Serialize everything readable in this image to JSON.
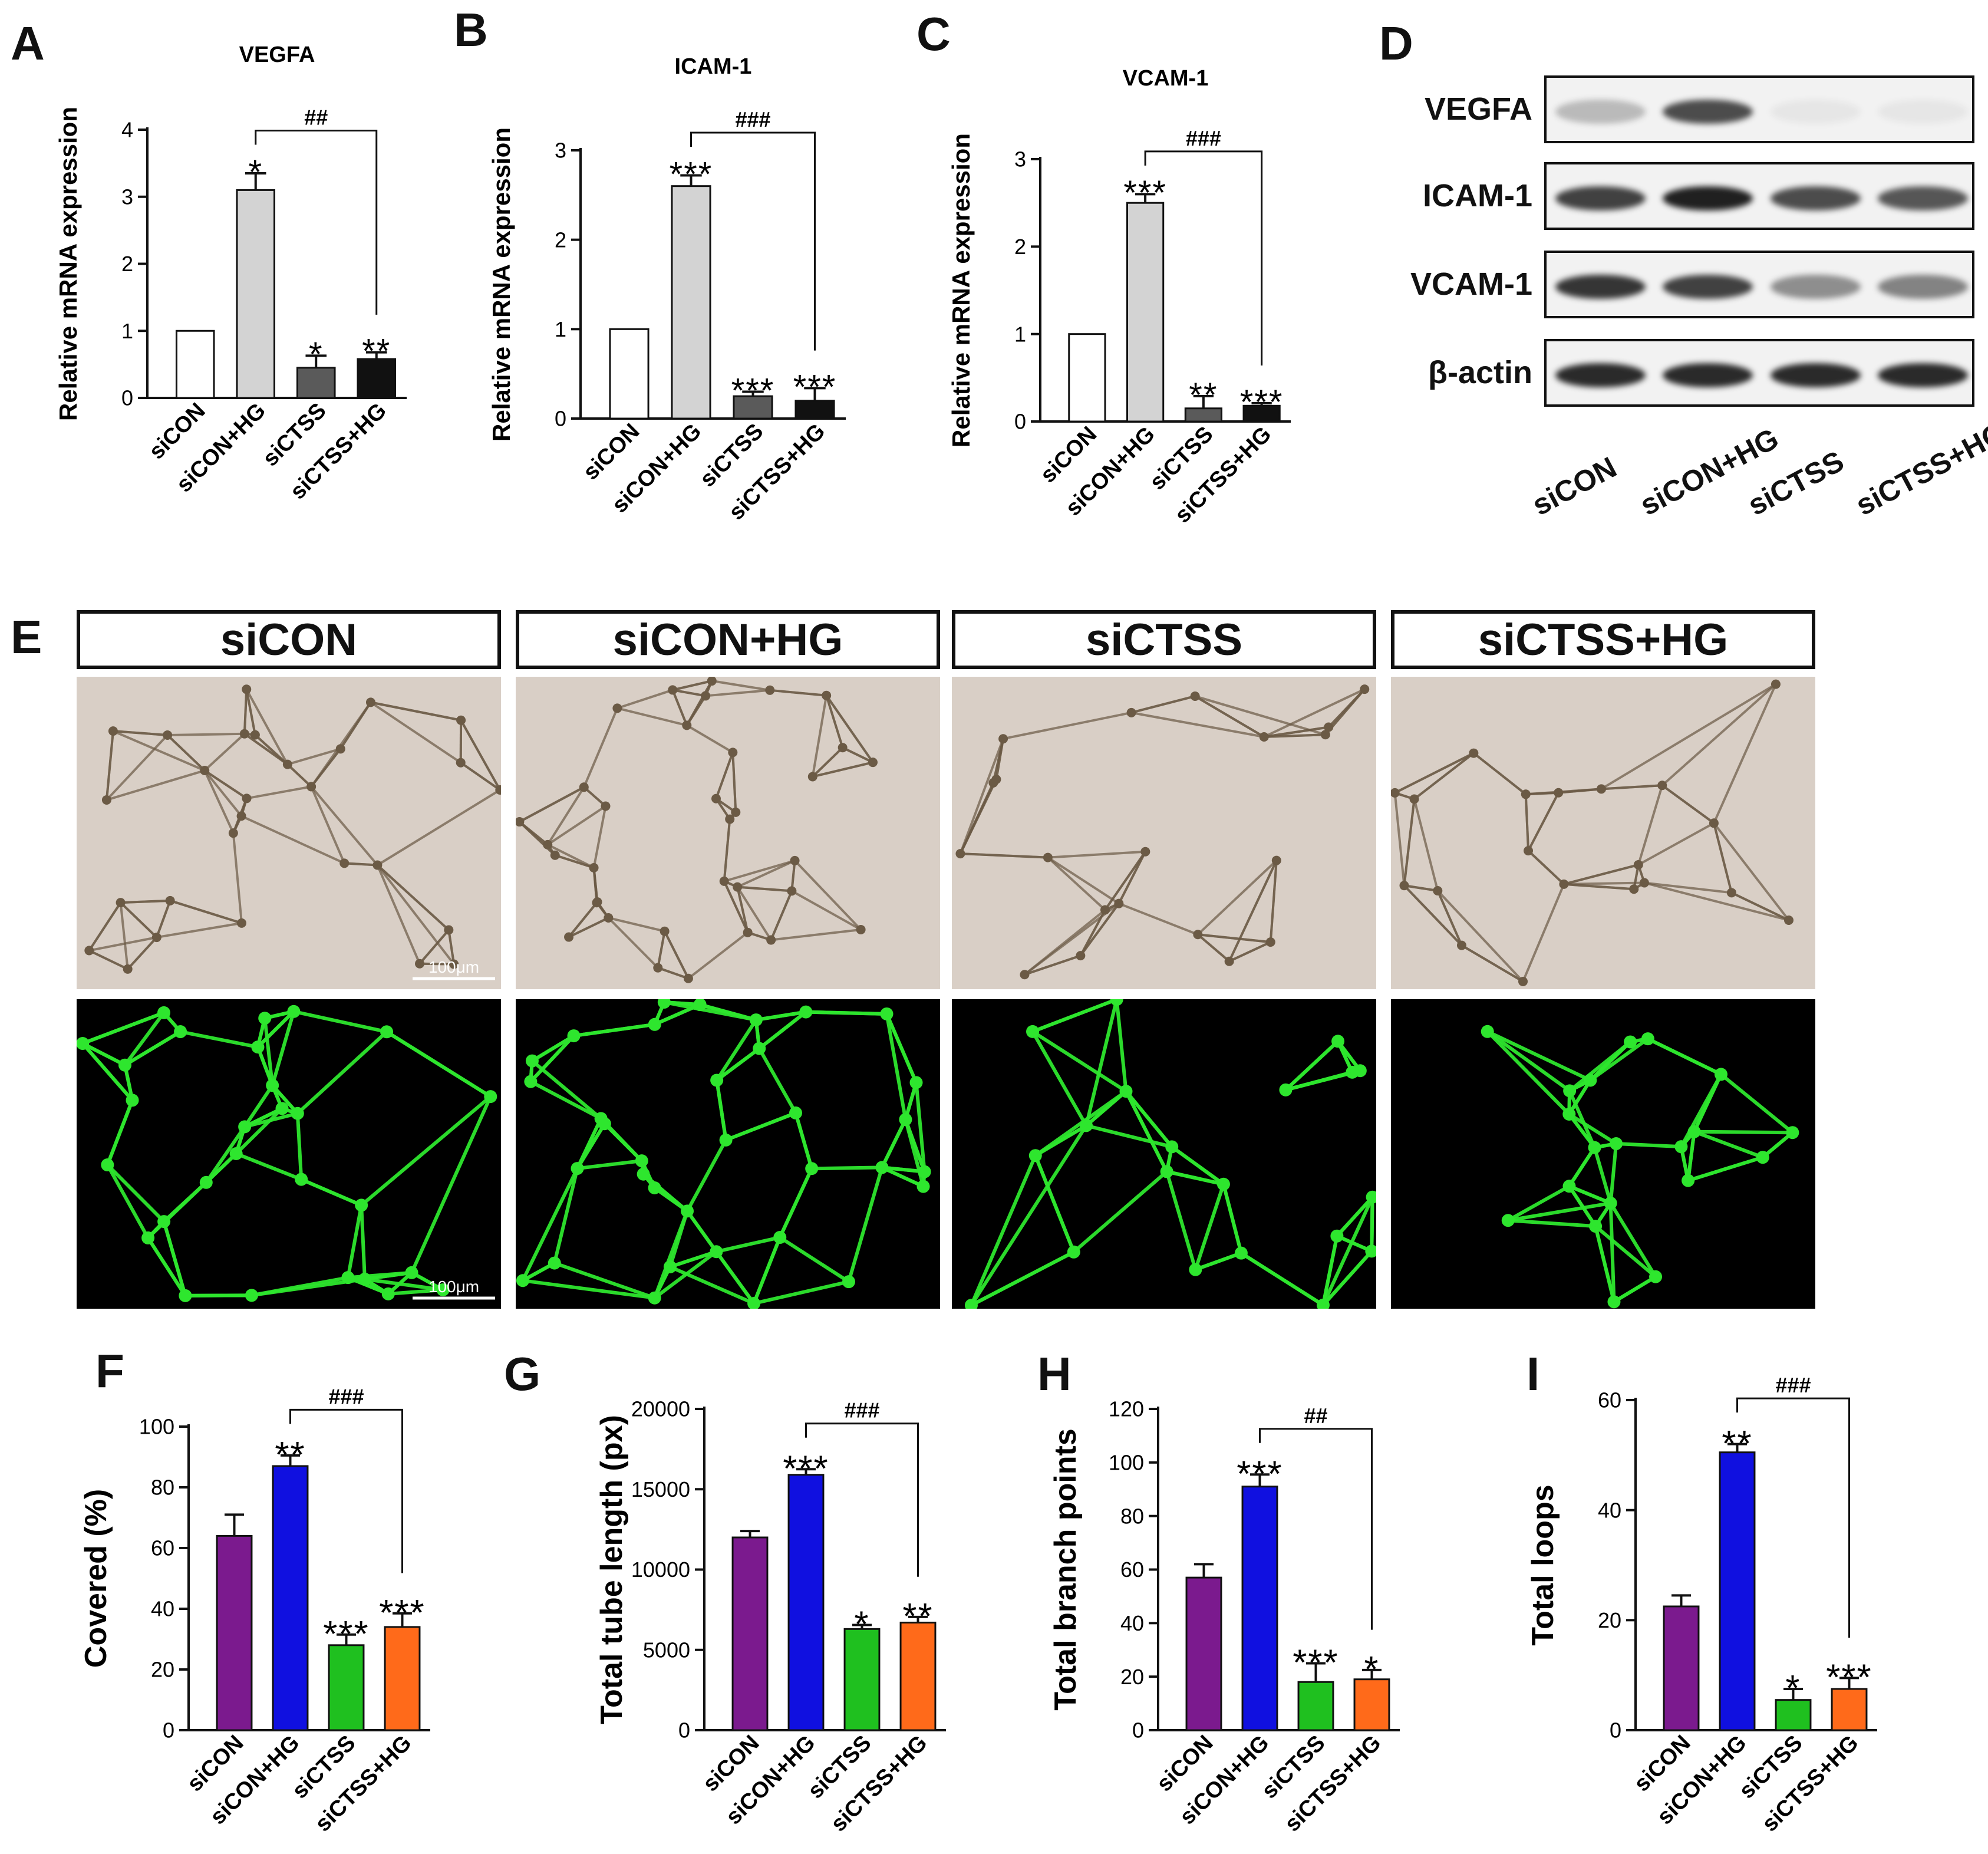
{
  "panels": {
    "A": "A",
    "B": "B",
    "C": "C",
    "D": "D",
    "E": "E",
    "F": "F",
    "G": "G",
    "H": "H",
    "I": "I"
  },
  "groups": [
    "siCON",
    "siCON+HG",
    "siCTSS",
    "siCTSS+HG"
  ],
  "chart_data": [
    {
      "id": "A",
      "type": "bar",
      "title": "VEGFA",
      "ylabel": "Relative  mRNA expression",
      "categories": [
        "siCON",
        "siCON+HG",
        "siCTSS",
        "siCTSS+HG"
      ],
      "values": [
        1.0,
        3.1,
        0.45,
        0.58
      ],
      "errors": [
        0,
        0.25,
        0.18,
        0.1
      ],
      "ylim": [
        0,
        4
      ],
      "yticks": [
        "0",
        "1",
        "2",
        "3",
        "4"
      ],
      "stars": [
        "",
        "*",
        "*",
        "**"
      ],
      "compare": "##",
      "colors": [
        "#ffffff",
        "#d3d3d3",
        "#5a5a5a",
        "#111111"
      ]
    },
    {
      "id": "B",
      "type": "bar",
      "title": "ICAM-1",
      "ylabel": "Relative  mRNA expression",
      "categories": [
        "siCON",
        "siCON+HG",
        "siCTSS",
        "siCTSS+HG"
      ],
      "values": [
        1.0,
        2.6,
        0.25,
        0.2
      ],
      "errors": [
        0,
        0.12,
        0.05,
        0.14
      ],
      "ylim": [
        0,
        3
      ],
      "yticks": [
        "0",
        "1",
        "2",
        "3"
      ],
      "stars": [
        "",
        "***",
        "***",
        "***"
      ],
      "compare": "###",
      "colors": [
        "#ffffff",
        "#d3d3d3",
        "#5a5a5a",
        "#111111"
      ]
    },
    {
      "id": "C",
      "type": "bar",
      "title": "VCAM-1",
      "ylabel": "Relative  mRNA expression",
      "categories": [
        "siCON",
        "siCON+HG",
        "siCTSS",
        "siCTSS+HG"
      ],
      "values": [
        1.0,
        2.5,
        0.15,
        0.18
      ],
      "errors": [
        0,
        0.1,
        0.14,
        0.03
      ],
      "ylim": [
        0,
        3
      ],
      "yticks": [
        "0",
        "1",
        "2",
        "3"
      ],
      "stars": [
        "",
        "***",
        "**",
        "***"
      ],
      "compare": "###",
      "colors": [
        "#ffffff",
        "#d3d3d3",
        "#5a5a5a",
        "#111111"
      ]
    },
    {
      "id": "F",
      "type": "bar",
      "title": "",
      "ylabel": "Covered (%)",
      "categories": [
        "siCON",
        "siCON+HG",
        "siCTSS",
        "siCTSS+HG"
      ],
      "values": [
        64,
        87,
        28,
        34
      ],
      "errors": [
        7,
        3.5,
        3.5,
        4.5
      ],
      "ylim": [
        0,
        100
      ],
      "yticks": [
        "0",
        "20",
        "40",
        "60",
        "80",
        "100"
      ],
      "stars": [
        "",
        "**",
        "***",
        "***"
      ],
      "compare": "###",
      "colors": [
        "#7b1a8e",
        "#1010e0",
        "#1fc01f",
        "#ff6a1a"
      ]
    },
    {
      "id": "G",
      "type": "bar",
      "title": "",
      "ylabel": "Total tube length (px)",
      "categories": [
        "siCON",
        "siCON+HG",
        "siCTSS",
        "siCTSS+HG"
      ],
      "values": [
        12000,
        15900,
        6300,
        6700
      ],
      "errors": [
        400,
        350,
        250,
        350
      ],
      "ylim": [
        0,
        20000
      ],
      "yticks": [
        "0",
        "5000",
        "10000",
        "15000",
        "20000"
      ],
      "stars": [
        "",
        "***",
        "*",
        "**"
      ],
      "compare": "###",
      "colors": [
        "#7b1a8e",
        "#1010e0",
        "#1fc01f",
        "#ff6a1a"
      ]
    },
    {
      "id": "H",
      "type": "bar",
      "title": "",
      "ylabel": "Total branch points",
      "categories": [
        "siCON",
        "siCON+HG",
        "siCTSS",
        "siCTSS+HG"
      ],
      "values": [
        57,
        91,
        18,
        19
      ],
      "errors": [
        5,
        4.5,
        7,
        3.5
      ],
      "ylim": [
        0,
        120
      ],
      "yticks": [
        "0",
        "20",
        "40",
        "60",
        "80",
        "100",
        "120"
      ],
      "stars": [
        "",
        "***",
        "***",
        "*"
      ],
      "compare": "##",
      "colors": [
        "#7b1a8e",
        "#1010e0",
        "#1fc01f",
        "#ff6a1a"
      ]
    },
    {
      "id": "I",
      "type": "bar",
      "title": "",
      "ylabel": "Total loops",
      "categories": [
        "siCON",
        "siCON+HG",
        "siCTSS",
        "siCTSS+HG"
      ],
      "values": [
        22.5,
        50.5,
        5.5,
        7.5
      ],
      "errors": [
        2,
        1.5,
        2,
        2
      ],
      "ylim": [
        0,
        60
      ],
      "yticks": [
        "0",
        "20",
        "40",
        "60"
      ],
      "stars": [
        "",
        "**",
        "*",
        "***"
      ],
      "compare": "###",
      "colors": [
        "#7b1a8e",
        "#1010e0",
        "#1fc01f",
        "#ff6a1a"
      ]
    }
  ],
  "blot": {
    "rows": [
      "VEGFA",
      "ICAM-1",
      "VCAM-1",
      "β-actin"
    ],
    "lanes": [
      "siCON",
      "siCON+HG",
      "siCTSS",
      "siCTSS+HG"
    ],
    "intensity": [
      [
        0.25,
        0.75,
        0.05,
        0.05
      ],
      [
        0.8,
        0.95,
        0.75,
        0.7
      ],
      [
        0.85,
        0.8,
        0.45,
        0.5
      ],
      [
        0.9,
        0.9,
        0.9,
        0.9
      ]
    ]
  },
  "micro": {
    "conditions": [
      "siCON",
      "siCON+HG",
      "siCTSS",
      "siCTSS+HG"
    ],
    "scale": "100μm",
    "colors": {
      "bright_bg": "#d9cfc6",
      "tube_bright": "#6b5a45",
      "fluor_bg": "#000000",
      "tube_fluor": "#2ee62e"
    }
  }
}
